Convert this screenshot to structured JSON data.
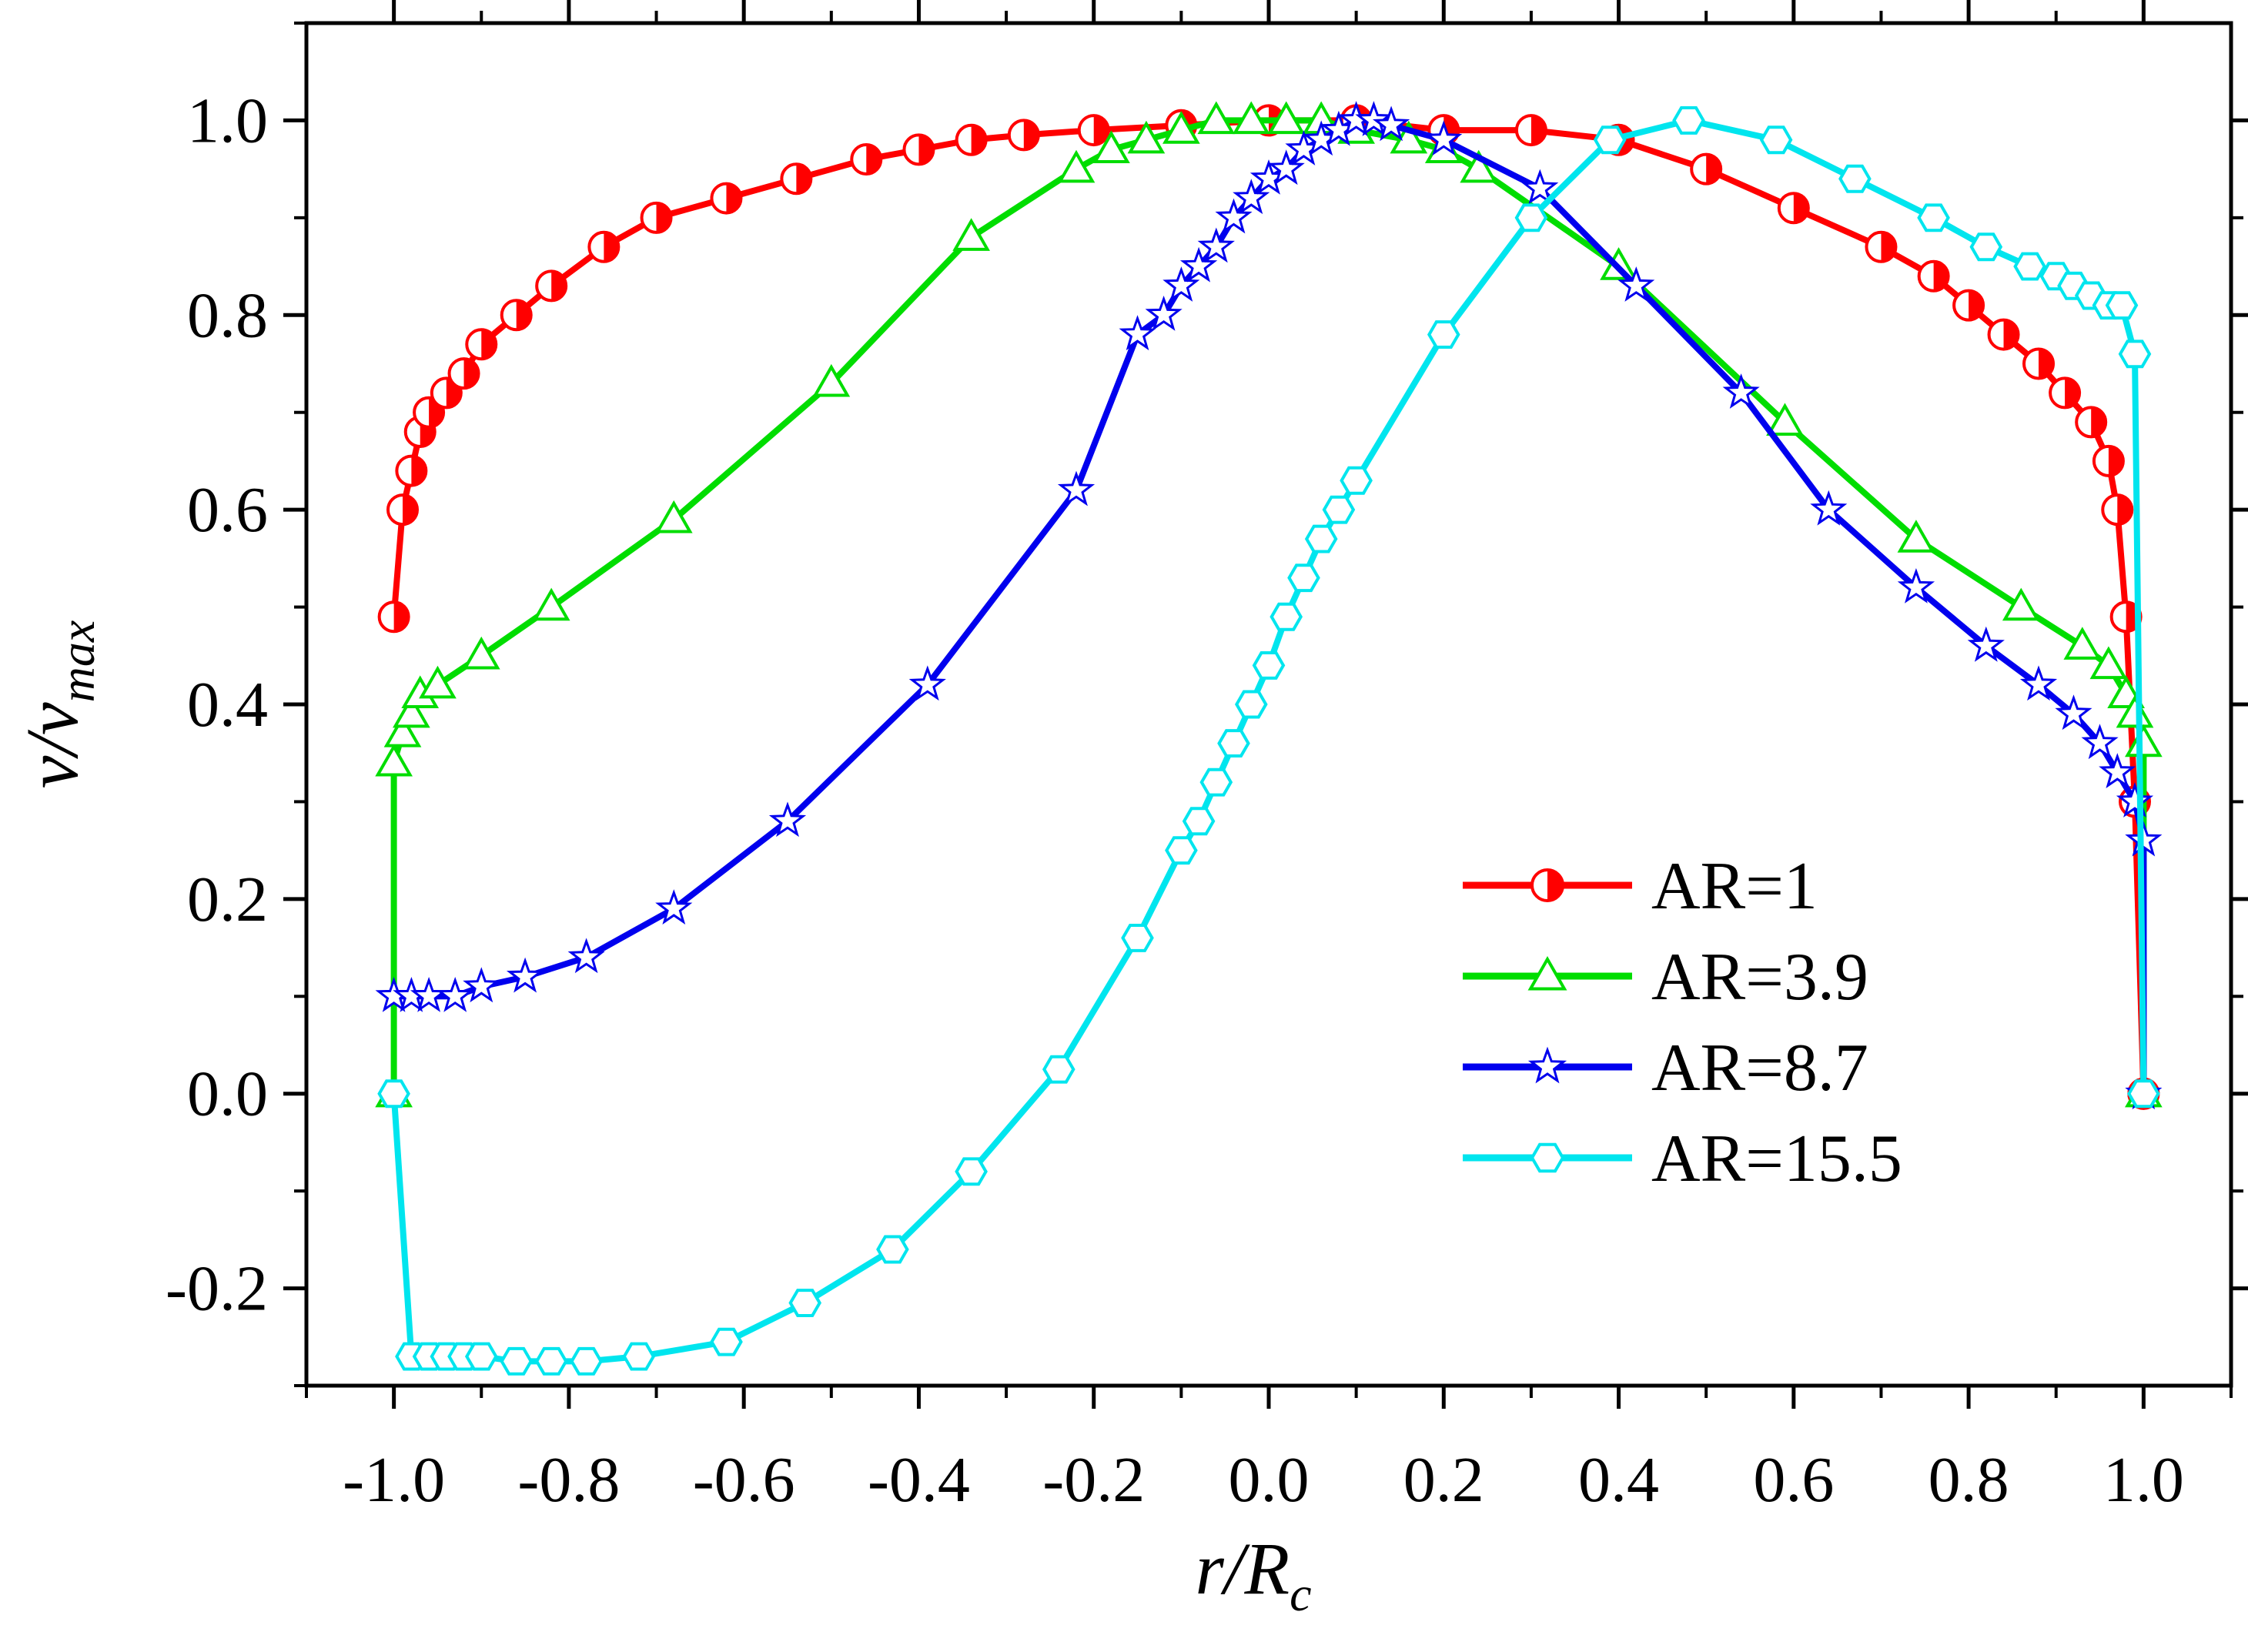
{
  "chart_data": {
    "type": "line",
    "title": "",
    "xlabel": {
      "main": "r/R",
      "sub": "c"
    },
    "ylabel": {
      "main": "v/v",
      "sub": "max"
    },
    "xlim": [
      -1.1,
      1.1
    ],
    "ylim": [
      -0.3,
      1.1
    ],
    "xticks": [
      -1.0,
      -0.8,
      -0.6,
      -0.4,
      -0.2,
      0.0,
      0.2,
      0.4,
      0.6,
      0.8,
      1.0
    ],
    "xtick_labels": [
      "-1.0",
      "-0.8",
      "-0.6",
      "-0.4",
      "-0.2",
      "0.0",
      "0.2",
      "0.4",
      "0.6",
      "0.8",
      "1.0"
    ],
    "yticks": [
      -0.2,
      0.0,
      0.2,
      0.4,
      0.6,
      0.8,
      1.0
    ],
    "ytick_labels": [
      "-0.2",
      "0.0",
      "0.2",
      "0.4",
      "0.6",
      "0.8",
      "1.0"
    ],
    "grid": false,
    "legend_position": "bottom-right",
    "series": [
      {
        "name": "AR=1",
        "color": "#ff0000",
        "marker": "half-filled-circle",
        "x": [
          -1.0,
          -0.99,
          -0.98,
          -0.97,
          -0.96,
          -0.94,
          -0.92,
          -0.9,
          -0.86,
          -0.82,
          -0.76,
          -0.7,
          -0.62,
          -0.54,
          -0.46,
          -0.4,
          -0.34,
          -0.28,
          -0.2,
          -0.1,
          0.0,
          0.1,
          0.2,
          0.3,
          0.4,
          0.5,
          0.6,
          0.7,
          0.76,
          0.8,
          0.84,
          0.88,
          0.91,
          0.94,
          0.96,
          0.97,
          0.98,
          0.99,
          1.0,
          1.0
        ],
        "y": [
          0.49,
          0.6,
          0.64,
          0.68,
          0.7,
          0.72,
          0.74,
          0.77,
          0.8,
          0.83,
          0.87,
          0.9,
          0.92,
          0.94,
          0.96,
          0.97,
          0.98,
          0.985,
          0.99,
          0.995,
          1.0,
          1.0,
          0.99,
          0.99,
          0.98,
          0.95,
          0.91,
          0.87,
          0.84,
          0.81,
          0.78,
          0.75,
          0.72,
          0.69,
          0.65,
          0.6,
          0.49,
          0.3,
          0.0,
          0.0
        ]
      },
      {
        "name": "AR=3.9",
        "color": "#00dd00",
        "marker": "triangle",
        "x": [
          -1.0,
          -1.0,
          -0.99,
          -0.98,
          -0.97,
          -0.95,
          -0.9,
          -0.82,
          -0.68,
          -0.5,
          -0.34,
          -0.22,
          -0.18,
          -0.14,
          -0.1,
          -0.06,
          -0.02,
          0.02,
          0.06,
          0.1,
          0.16,
          0.2,
          0.24,
          0.4,
          0.59,
          0.74,
          0.86,
          0.93,
          0.96,
          0.98,
          0.99,
          1.0,
          1.0
        ],
        "y": [
          0.0,
          0.34,
          0.37,
          0.39,
          0.41,
          0.42,
          0.45,
          0.5,
          0.59,
          0.73,
          0.88,
          0.95,
          0.97,
          0.98,
          0.99,
          1.0,
          1.0,
          1.0,
          1.0,
          0.99,
          0.98,
          0.97,
          0.95,
          0.85,
          0.69,
          0.57,
          0.5,
          0.46,
          0.44,
          0.41,
          0.39,
          0.36,
          0.0
        ]
      },
      {
        "name": "AR=8.7",
        "color": "#0000ee",
        "marker": "star",
        "x": [
          -1.0,
          -0.98,
          -0.96,
          -0.93,
          -0.9,
          -0.85,
          -0.78,
          -0.68,
          -0.55,
          -0.39,
          -0.22,
          -0.15,
          -0.12,
          -0.1,
          -0.08,
          -0.06,
          -0.04,
          -0.02,
          0.0,
          0.02,
          0.04,
          0.06,
          0.08,
          0.1,
          0.12,
          0.14,
          0.2,
          0.31,
          0.42,
          0.54,
          0.64,
          0.74,
          0.82,
          0.88,
          0.92,
          0.95,
          0.97,
          0.99,
          1.0,
          1.0
        ],
        "y": [
          0.1,
          0.1,
          0.1,
          0.1,
          0.11,
          0.12,
          0.14,
          0.19,
          0.28,
          0.42,
          0.62,
          0.78,
          0.8,
          0.83,
          0.85,
          0.87,
          0.9,
          0.92,
          0.94,
          0.95,
          0.97,
          0.98,
          0.99,
          1.0,
          1.0,
          0.995,
          0.98,
          0.93,
          0.83,
          0.72,
          0.6,
          0.52,
          0.46,
          0.42,
          0.39,
          0.36,
          0.33,
          0.3,
          0.26,
          0.0
        ]
      },
      {
        "name": "AR=15.5",
        "color": "#00e5ee",
        "marker": "hexagon",
        "x": [
          -1.0,
          -0.98,
          -0.96,
          -0.94,
          -0.92,
          -0.9,
          -0.86,
          -0.82,
          -0.78,
          -0.72,
          -0.62,
          -0.53,
          -0.43,
          -0.34,
          -0.24,
          -0.15,
          -0.1,
          -0.08,
          -0.06,
          -0.04,
          -0.02,
          0.0,
          0.02,
          0.04,
          0.06,
          0.08,
          0.1,
          0.2,
          0.3,
          0.39,
          0.48,
          0.58,
          0.67,
          0.76,
          0.82,
          0.87,
          0.9,
          0.92,
          0.94,
          0.96,
          0.975,
          0.99,
          1.0
        ],
        "y": [
          0.0,
          -0.27,
          -0.27,
          -0.27,
          -0.27,
          -0.27,
          -0.275,
          -0.275,
          -0.275,
          -0.27,
          -0.255,
          -0.215,
          -0.16,
          -0.08,
          0.025,
          0.16,
          0.25,
          0.28,
          0.32,
          0.36,
          0.4,
          0.44,
          0.49,
          0.53,
          0.57,
          0.6,
          0.63,
          0.78,
          0.9,
          0.98,
          1.0,
          0.98,
          0.94,
          0.9,
          0.87,
          0.85,
          0.84,
          0.83,
          0.82,
          0.81,
          0.81,
          0.76,
          0.0
        ]
      }
    ]
  }
}
